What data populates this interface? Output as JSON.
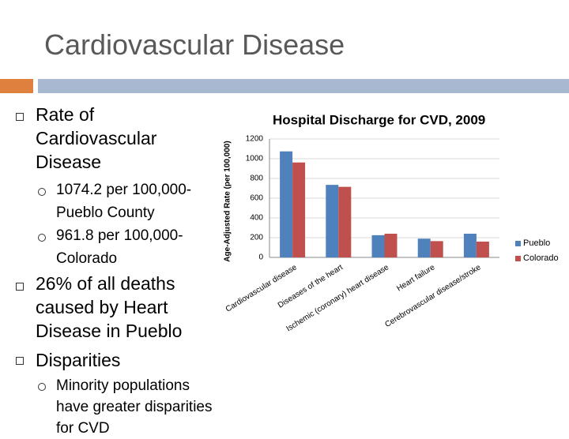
{
  "title": "Cardiovascular Disease",
  "bullets": [
    {
      "text": "Rate of Cardiovascular Disease",
      "sub": [
        "1074.2 per 100,000- Pueblo County",
        "961.8 per 100,000- Colorado"
      ]
    },
    {
      "text": "26% of all deaths caused by Heart Disease in Pueblo",
      "sub": []
    },
    {
      "text": "Disparities",
      "sub": [
        "Minority populations have greater disparities for CVD"
      ]
    }
  ],
  "chart_data": {
    "type": "bar",
    "title": "Hospital Discharge for CVD, 2009",
    "y_label": "Age-Adjusted Rate (per 100,000)",
    "categories": [
      "Cardiovascular disease",
      "Diseases of the heart",
      "Ischemic (coronary) heart disease",
      "Heart failure",
      "Cerebrovascular disease/stroke"
    ],
    "series": [
      {
        "name": "Pueblo",
        "color": "#4f81bd",
        "values": [
          1074.2,
          735,
          225,
          190,
          240
        ]
      },
      {
        "name": "Colorado",
        "color": "#c0504d",
        "values": [
          961.8,
          715,
          240,
          165,
          160
        ]
      }
    ],
    "ylim": [
      0,
      1200
    ],
    "yticks": [
      0,
      200,
      400,
      600,
      800,
      1000,
      1200
    ],
    "grid": true,
    "legend": "right"
  }
}
